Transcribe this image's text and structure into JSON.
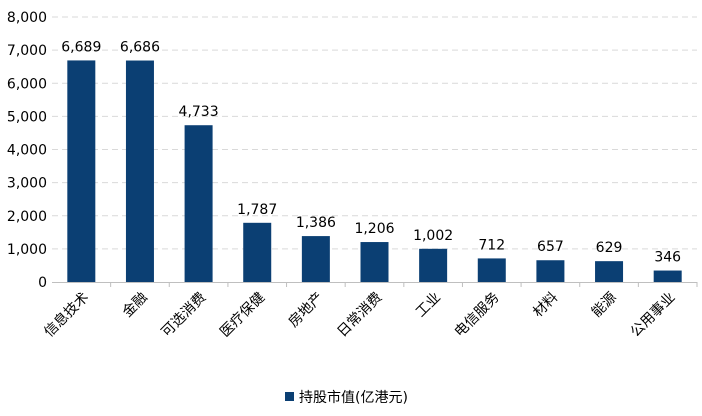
{
  "chart_data": {
    "type": "bar",
    "categories": [
      "信息技术",
      "金融",
      "可选消费",
      "医疗保健",
      "房地产",
      "日常消费",
      "工业",
      "电信服务",
      "材料",
      "能源",
      "公用事业"
    ],
    "series": [
      {
        "name": "持股市值(亿港元)",
        "values": [
          6689,
          6686,
          4733,
          1787,
          1386,
          1206,
          1002,
          712,
          657,
          629,
          346
        ],
        "labels": [
          "6,689",
          "6,686",
          "4,733",
          "1,787",
          "1,386",
          "1,206",
          "1,002",
          "712",
          "657",
          "629",
          "346"
        ],
        "color": "#0b3f73"
      }
    ],
    "yticks": [
      0,
      1000,
      2000,
      3000,
      4000,
      5000,
      6000,
      7000,
      8000
    ],
    "ytick_labels": [
      "0",
      "1,000",
      "2,000",
      "3,000",
      "4,000",
      "5,000",
      "6,000",
      "7,000",
      "8,000"
    ],
    "ylim": [
      0,
      8000
    ],
    "grid": true,
    "gridline_color": "#d9d9d9",
    "axis_color": "#bfbfbf",
    "legend_position": "bottom-center"
  }
}
